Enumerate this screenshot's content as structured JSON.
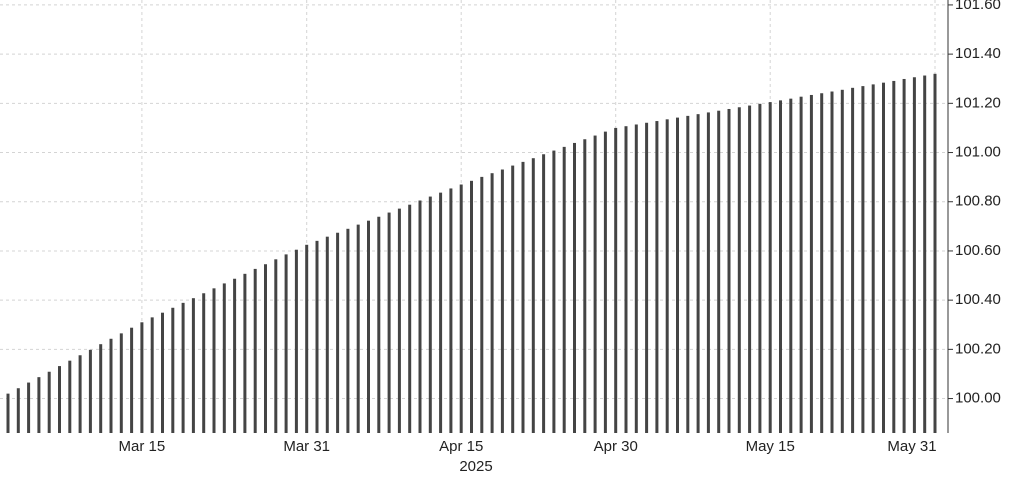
{
  "chart_data": {
    "type": "bar",
    "color": "#444444",
    "grid": true,
    "x": [
      "2025-03-02",
      "2025-03-03",
      "2025-03-04",
      "2025-03-05",
      "2025-03-06",
      "2025-03-07",
      "2025-03-08",
      "2025-03-09",
      "2025-03-10",
      "2025-03-11",
      "2025-03-12",
      "2025-03-13",
      "2025-03-14",
      "2025-03-15",
      "2025-03-16",
      "2025-03-17",
      "2025-03-18",
      "2025-03-19",
      "2025-03-20",
      "2025-03-21",
      "2025-03-22",
      "2025-03-23",
      "2025-03-24",
      "2025-03-25",
      "2025-03-26",
      "2025-03-27",
      "2025-03-28",
      "2025-03-29",
      "2025-03-30",
      "2025-03-31",
      "2025-04-01",
      "2025-04-02",
      "2025-04-03",
      "2025-04-04",
      "2025-04-05",
      "2025-04-06",
      "2025-04-07",
      "2025-04-08",
      "2025-04-09",
      "2025-04-10",
      "2025-04-11",
      "2025-04-12",
      "2025-04-13",
      "2025-04-14",
      "2025-04-15",
      "2025-04-16",
      "2025-04-17",
      "2025-04-18",
      "2025-04-19",
      "2025-04-20",
      "2025-04-21",
      "2025-04-22",
      "2025-04-23",
      "2025-04-24",
      "2025-04-25",
      "2025-04-26",
      "2025-04-27",
      "2025-04-28",
      "2025-04-29",
      "2025-04-30",
      "2025-05-01",
      "2025-05-02",
      "2025-05-03",
      "2025-05-04",
      "2025-05-05",
      "2025-05-06",
      "2025-05-07",
      "2025-05-08",
      "2025-05-09",
      "2025-05-10",
      "2025-05-11",
      "2025-05-12",
      "2025-05-13",
      "2025-05-14",
      "2025-05-15",
      "2025-05-16",
      "2025-05-17",
      "2025-05-18",
      "2025-05-19",
      "2025-05-20",
      "2025-05-21",
      "2025-05-22",
      "2025-05-23",
      "2025-05-24",
      "2025-05-25",
      "2025-05-26",
      "2025-05-27",
      "2025-05-28",
      "2025-05-29",
      "2025-05-30",
      "2025-05-31"
    ],
    "values": [
      100.02,
      100.042,
      100.065,
      100.087,
      100.109,
      100.132,
      100.154,
      100.176,
      100.198,
      100.221,
      100.243,
      100.265,
      100.288,
      100.31,
      100.33,
      100.349,
      100.369,
      100.389,
      100.408,
      100.428,
      100.448,
      100.468,
      100.487,
      100.507,
      100.527,
      100.546,
      100.566,
      100.586,
      100.605,
      100.625,
      100.641,
      100.658,
      100.674,
      100.69,
      100.707,
      100.723,
      100.739,
      100.756,
      100.772,
      100.788,
      100.805,
      100.821,
      100.837,
      100.854,
      100.87,
      100.885,
      100.901,
      100.916,
      100.931,
      100.947,
      100.962,
      100.977,
      100.993,
      101.008,
      101.023,
      101.039,
      101.054,
      101.069,
      101.085,
      101.1,
      101.107,
      101.114,
      101.121,
      101.128,
      101.135,
      101.142,
      101.149,
      101.156,
      101.163,
      101.17,
      101.177,
      101.184,
      101.191,
      101.198,
      101.205,
      101.212,
      101.219,
      101.227,
      101.234,
      101.241,
      101.248,
      101.255,
      101.263,
      101.27,
      101.277,
      101.284,
      101.291,
      101.299,
      101.306,
      101.313,
      101.32
    ],
    "xlim": [
      "2025-03-01",
      "2025-06-01"
    ],
    "xticks": [
      {
        "value": "2025-03-15",
        "label": "Mar 15"
      },
      {
        "value": "2025-03-31",
        "label": "Mar 31"
      },
      {
        "value": "2025-04-15",
        "label": "Apr 15"
      },
      {
        "value": "2025-04-30",
        "label": "Apr 30"
      },
      {
        "value": "2025-05-15",
        "label": "May 15"
      },
      {
        "value": "2025-05-31",
        "label": "May 31"
      }
    ],
    "x_sublabel": "2025",
    "ylim": [
      99.86,
      101.62
    ],
    "yticks": [
      {
        "value": 100,
        "label": "100.00"
      },
      {
        "value": 100.2,
        "label": "100.20"
      },
      {
        "value": 100.4,
        "label": "100.40"
      },
      {
        "value": 100.6,
        "label": "100.60"
      },
      {
        "value": 100.8,
        "label": "100.80"
      },
      {
        "value": 101,
        "label": "101.00"
      },
      {
        "value": 101.2,
        "label": "101.20"
      },
      {
        "value": 101.4,
        "label": "101.40"
      },
      {
        "value": 101.6,
        "label": "101.60"
      }
    ],
    "y_axis_side": "right"
  }
}
